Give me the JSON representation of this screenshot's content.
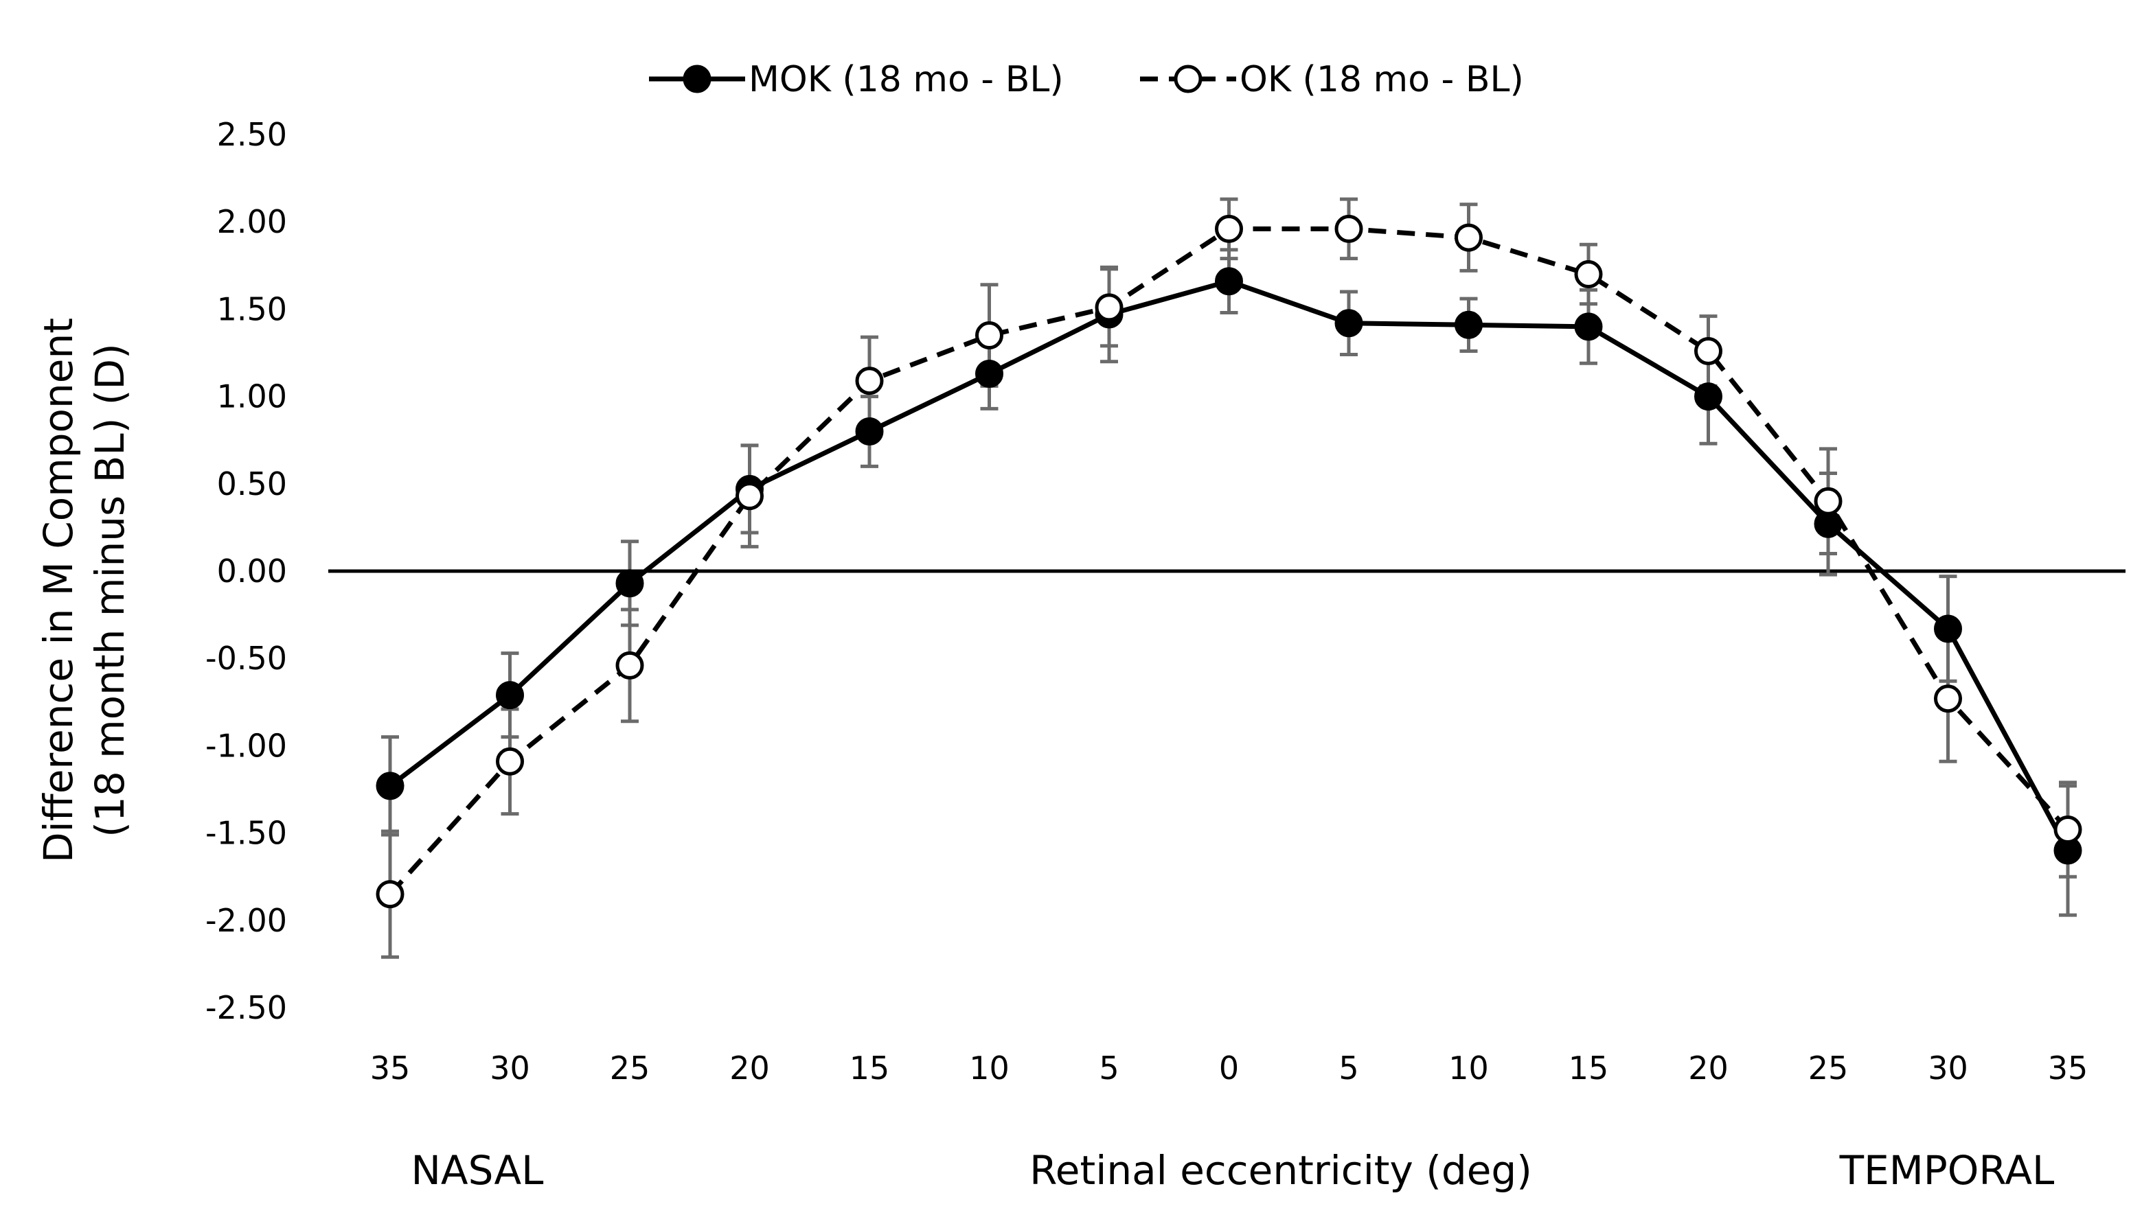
{
  "chart_data": {
    "type": "line",
    "ylabel_line1": "Difference in M Component",
    "ylabel_line2": "(18 month minus BL) (D)",
    "xlabel": "Retinal eccentricity (deg)",
    "region_labels": {
      "left": "NASAL",
      "right": "TEMPORAL"
    },
    "categories": [
      "35",
      "30",
      "25",
      "20",
      "15",
      "10",
      "5",
      "0",
      "5",
      "10",
      "15",
      "20",
      "25",
      "30",
      "35"
    ],
    "ylim": [
      -2.5,
      2.5
    ],
    "yticks": [
      "2.50",
      "2.00",
      "1.50",
      "1.00",
      "0.50",
      "0.00",
      "-0.50",
      "-1.00",
      "-1.50",
      "-2.00",
      "-2.50"
    ],
    "ytick_values": [
      2.5,
      2.0,
      1.5,
      1.0,
      0.5,
      0.0,
      -0.5,
      -1.0,
      -1.5,
      -2.0,
      -2.5
    ],
    "grid": false,
    "legend_position": "top-center",
    "series": [
      {
        "name": "MOK (18 mo - BL)",
        "style": "solid",
        "marker": "filled-circle",
        "color": "#000000",
        "values": [
          -1.23,
          -0.71,
          -0.07,
          0.47,
          0.8,
          1.13,
          1.47,
          1.66,
          1.42,
          1.41,
          1.4,
          1.0,
          0.27,
          -0.33,
          -1.6
        ],
        "errors": [
          0.28,
          0.24,
          0.24,
          0.25,
          0.2,
          0.2,
          0.27,
          0.18,
          0.18,
          0.15,
          0.21,
          0.27,
          0.29,
          0.3,
          0.37
        ]
      },
      {
        "name": "OK (18 mo - BL)",
        "style": "dashed",
        "marker": "open-circle",
        "color": "#000000",
        "values": [
          -1.85,
          -1.09,
          -0.54,
          0.43,
          1.09,
          1.35,
          1.51,
          1.96,
          1.96,
          1.91,
          1.7,
          1.26,
          0.4,
          -0.73,
          -1.48
        ],
        "errors": [
          0.36,
          0.3,
          0.32,
          0.29,
          0.25,
          0.29,
          0.22,
          0.17,
          0.17,
          0.19,
          0.17,
          0.2,
          0.3,
          0.36,
          0.27
        ]
      }
    ]
  }
}
